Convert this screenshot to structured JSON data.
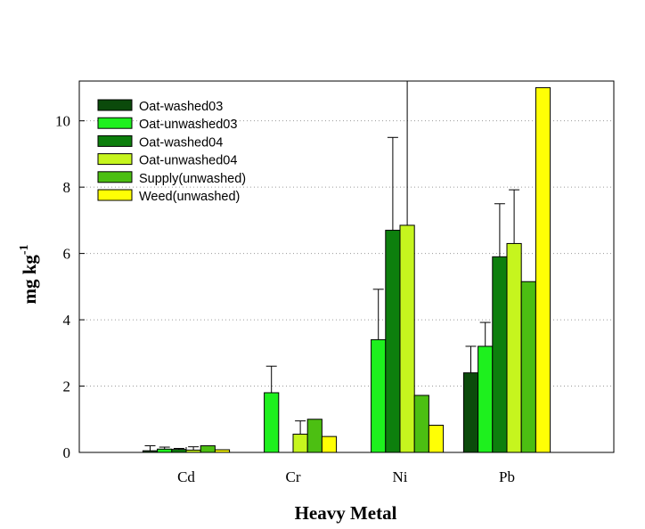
{
  "chart_data": {
    "type": "bar",
    "title": "",
    "xlabel": "Heavy Metal",
    "ylabel": {
      "main": "mg kg",
      "superscript": "-1"
    },
    "categories": [
      "Cd",
      "Cr",
      "Ni",
      "Pb"
    ],
    "ylim": [
      0,
      11.2
    ],
    "yticks": [
      0,
      2,
      4,
      6,
      8,
      10
    ],
    "grid": "horizontal dotted",
    "legend_position": "top-left",
    "series": [
      {
        "name": "Oat-washed03",
        "color": "#0b4a0b",
        "values": [
          0.05,
          null,
          null,
          2.4
        ],
        "errors": [
          0.15,
          null,
          null,
          0.8
        ]
      },
      {
        "name": "Oat-unwashed03",
        "color": "#1ef01e",
        "values": [
          0.1,
          1.8,
          3.4,
          3.2
        ],
        "errors": [
          0.06,
          0.8,
          1.52,
          0.72
        ]
      },
      {
        "name": "Oat-washed04",
        "color": "#0d7f0d",
        "values": [
          0.09,
          null,
          6.7,
          5.9
        ],
        "errors": [
          0.03,
          null,
          2.8,
          1.6
        ]
      },
      {
        "name": "Oat-unwashed04",
        "color": "#c6f51e",
        "values": [
          0.07,
          0.55,
          6.85,
          6.3
        ],
        "errors": [
          0.1,
          0.4,
          4.6,
          1.62
        ]
      },
      {
        "name": "Supply(unwashed)",
        "color": "#4cbf12",
        "values": [
          0.2,
          1.0,
          1.72,
          5.15
        ],
        "errors": [
          null,
          null,
          null,
          null
        ]
      },
      {
        "name": "Weed(unwashed)",
        "color": "#ffff05",
        "values": [
          0.08,
          0.48,
          0.82,
          11.0
        ],
        "errors": [
          null,
          null,
          null,
          null
        ]
      }
    ]
  }
}
